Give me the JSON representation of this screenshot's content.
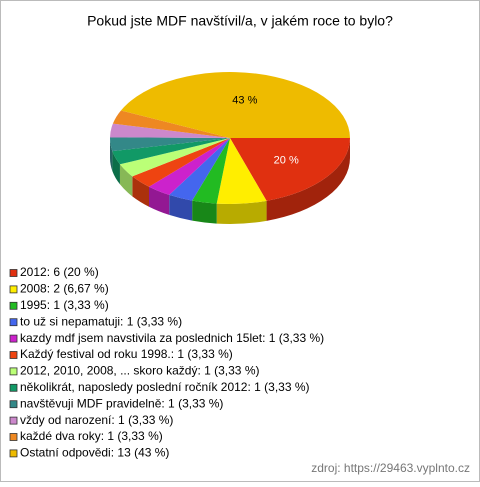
{
  "chart_data": {
    "type": "pie3d",
    "title": "Pokud jste MDF navštívil/a, v jakém roce to bylo?",
    "categories": [
      "2012: 6 (20 %)",
      "2008: 2 (6,67 %)",
      "1995: 1 (3,33 %)",
      "to už si nepamatuji: 1 (3,33 %)",
      "kazdy mdf jsem navstivila za poslednich 15let: 1 (3,33 %)",
      "Každý festival od roku 1998.: 1 (3,33 %)",
      "2012, 2010, 2008, ... skoro každý: 1 (3,33 %)",
      "několikrát, naposledy poslední ročník 2012: 1 (3,33 %)",
      "navštěvuji MDF pravidelně: 1 (3,33 %)",
      "vždy od narození: 1 (3,33 %)",
      "každé dva roky: 1 (3,33 %)",
      "Ostatní odpovědi: 13 (43 %)"
    ],
    "values": [
      20,
      6.67,
      3.33,
      3.33,
      3.33,
      3.33,
      3.33,
      3.33,
      3.33,
      3.33,
      3.33,
      43
    ],
    "value_labels": [
      "20 %",
      null,
      null,
      null,
      null,
      null,
      null,
      null,
      null,
      null,
      null,
      "43 %"
    ],
    "colors": [
      "#e03010",
      "#ffee00",
      "#22bb22",
      "#4466ee",
      "#cc22cc",
      "#ee4411",
      "#bbff77",
      "#119966",
      "#338888",
      "#cc88cc",
      "#ee8822",
      "#eebb00"
    ],
    "source": "zdroj: https://29463.vyplnto.cz"
  }
}
